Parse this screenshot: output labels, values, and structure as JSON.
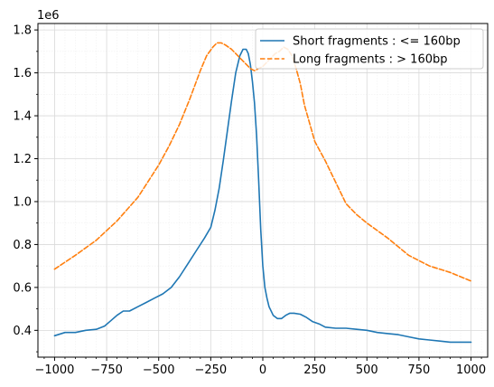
{
  "chart_data": {
    "type": "line",
    "scale_label": "1e6",
    "xlim": [
      -1080,
      1080
    ],
    "ylim": [
      0.275,
      1.83
    ],
    "xticks": [
      -1000,
      -750,
      -500,
      -250,
      0,
      250,
      500,
      750,
      1000
    ],
    "xtick_labels": [
      "−1000",
      "−750",
      "−500",
      "−250",
      "0",
      "250",
      "500",
      "750",
      "1000"
    ],
    "yticks": [
      0.4,
      0.6,
      0.8,
      1.0,
      1.2,
      1.4,
      1.6,
      1.8
    ],
    "ytick_labels": [
      "0.4",
      "0.6",
      "0.8",
      "1.0",
      "1.2",
      "1.4",
      "1.6",
      "1.8"
    ],
    "grid": true,
    "minor_grid": true,
    "legend_position": "top-right",
    "series": [
      {
        "name": "Short fragments : <= 160bp",
        "color": "#1f77b4",
        "style": "solid",
        "x": [
          -1000,
          -950,
          -900,
          -850,
          -800,
          -760,
          -730,
          -700,
          -670,
          -640,
          -600,
          -560,
          -520,
          -480,
          -440,
          -400,
          -360,
          -320,
          -280,
          -250,
          -230,
          -210,
          -190,
          -170,
          -150,
          -130,
          -110,
          -95,
          -80,
          -70,
          -60,
          -50,
          -40,
          -30,
          -20,
          -10,
          0,
          10,
          20,
          30,
          50,
          70,
          90,
          110,
          130,
          150,
          180,
          210,
          240,
          270,
          300,
          350,
          400,
          450,
          500,
          550,
          600,
          650,
          700,
          750,
          800,
          850,
          900,
          950,
          1000
        ],
        "y": [
          0.375,
          0.39,
          0.39,
          0.4,
          0.405,
          0.42,
          0.445,
          0.47,
          0.49,
          0.49,
          0.51,
          0.53,
          0.55,
          0.57,
          0.6,
          0.65,
          0.71,
          0.77,
          0.83,
          0.88,
          0.96,
          1.06,
          1.19,
          1.33,
          1.47,
          1.6,
          1.68,
          1.71,
          1.71,
          1.69,
          1.64,
          1.56,
          1.46,
          1.31,
          1.1,
          0.87,
          0.7,
          0.6,
          0.55,
          0.51,
          0.47,
          0.455,
          0.455,
          0.47,
          0.48,
          0.48,
          0.475,
          0.46,
          0.44,
          0.43,
          0.415,
          0.41,
          0.41,
          0.405,
          0.4,
          0.39,
          0.385,
          0.38,
          0.37,
          0.36,
          0.355,
          0.35,
          0.345,
          0.345,
          0.345
        ]
      },
      {
        "name": "Long fragments : > 160bp",
        "color": "#ff7f0e",
        "style": "dashed",
        "x": [
          -1000,
          -900,
          -800,
          -700,
          -600,
          -500,
          -450,
          -400,
          -350,
          -300,
          -270,
          -240,
          -220,
          -200,
          -180,
          -150,
          -120,
          -100,
          -80,
          -60,
          -40,
          -20,
          0,
          20,
          40,
          60,
          80,
          100,
          120,
          140,
          160,
          180,
          200,
          250,
          300,
          350,
          400,
          450,
          500,
          600,
          700,
          800,
          900,
          1000
        ],
        "y": [
          0.685,
          0.75,
          0.82,
          0.91,
          1.02,
          1.17,
          1.26,
          1.36,
          1.48,
          1.61,
          1.68,
          1.72,
          1.74,
          1.74,
          1.73,
          1.71,
          1.68,
          1.66,
          1.64,
          1.62,
          1.61,
          1.62,
          1.63,
          1.65,
          1.67,
          1.69,
          1.7,
          1.72,
          1.71,
          1.68,
          1.62,
          1.55,
          1.45,
          1.28,
          1.19,
          1.09,
          0.99,
          0.94,
          0.9,
          0.83,
          0.75,
          0.7,
          0.67,
          0.63
        ]
      }
    ]
  }
}
